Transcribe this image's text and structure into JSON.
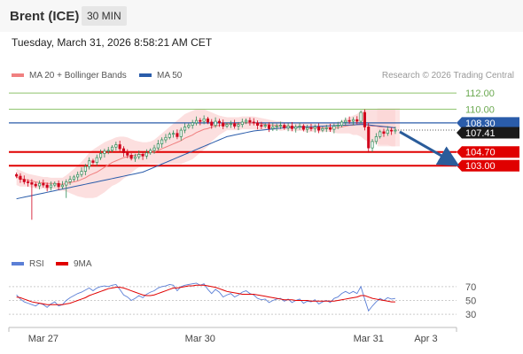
{
  "header": {
    "instrument": "Brent (ICE)",
    "timeframe": "30 MIN",
    "datetime": "Tuesday, March 31, 2026 8:58:21 AM CET"
  },
  "legend": {
    "items": [
      {
        "label": "MA 20 + Bollinger Bands",
        "color": "#f08080"
      },
      {
        "label": "MA 50",
        "color": "#2a5caa"
      }
    ],
    "source": "Research © 2026 Trading Central"
  },
  "rsi_legend": {
    "items": [
      {
        "label": "RSI",
        "color": "#5b7fd6"
      },
      {
        "label": "9MA",
        "color": "#e00000"
      }
    ]
  },
  "colors": {
    "up": "#2e8b57",
    "down": "#d0021b",
    "resistance": "#8dc26b",
    "support": "#e00000",
    "pivot": "#2a5caa",
    "bollinger": "#fbd4d4",
    "ma20": "#f08080",
    "ma50": "#2a5caa",
    "arrow": "#2a5c9a"
  },
  "chart_data": [
    {
      "type": "candlestick",
      "ylim": [
        94.8,
        113.0
      ],
      "x_ticks": [
        "Mar 27",
        "Mar 30",
        "Mar 31",
        "Apr 3"
      ],
      "x_tick_index": [
        7,
        48,
        92,
        107
      ],
      "x_range": [
        -2,
        115
      ],
      "shaded_forecast_from_index": 95,
      "levels": [
        {
          "label": "112.00",
          "value": 112.0,
          "role": "resistance"
        },
        {
          "label": "110.00",
          "value": 110.0,
          "role": "resistance"
        },
        {
          "label": "108.30",
          "value": 108.3,
          "role": "pivot"
        },
        {
          "label": "104.70",
          "value": 104.7,
          "role": "support"
        },
        {
          "label": "103.00",
          "value": 103.0,
          "role": "support"
        }
      ],
      "last_price": {
        "label": "107.41",
        "value": 107.41
      },
      "closes": [
        101.7,
        101.3,
        101.0,
        100.9,
        100.7,
        100.5,
        100.8,
        100.6,
        100.3,
        100.6,
        100.8,
        100.4,
        100.6,
        101.0,
        101.3,
        101.6,
        101.9,
        102.3,
        102.9,
        103.6,
        103.4,
        104.0,
        104.5,
        104.8,
        104.9,
        105.3,
        105.6,
        105.1,
        104.6,
        104.3,
        103.9,
        104.1,
        104.4,
        104.2,
        104.6,
        104.9,
        105.2,
        105.7,
        106.2,
        106.5,
        106.9,
        107.0,
        106.6,
        107.4,
        107.8,
        108.0,
        108.3,
        108.6,
        108.5,
        108.8,
        108.4,
        108.0,
        108.5,
        108.3,
        107.9,
        108.1,
        108.2,
        107.9,
        108.1,
        108.4,
        108.6,
        108.4,
        108.3,
        108.0,
        107.9,
        108.0,
        107.6,
        107.8,
        107.9,
        108.0,
        107.7,
        107.9,
        107.6,
        107.8,
        107.9,
        107.5,
        107.7,
        107.6,
        107.8,
        107.4,
        107.6,
        107.7,
        107.5,
        107.9,
        108.0,
        108.4,
        108.6,
        108.5,
        108.7,
        108.5,
        109.6,
        107.8,
        105.2,
        106.0,
        106.6,
        107.2,
        107.0,
        107.4,
        107.3,
        107.41
      ],
      "ma20": [
        101.6,
        101.4,
        101.3,
        101.2,
        101.1,
        101.0,
        100.9,
        100.9,
        100.8,
        100.8,
        100.8,
        100.7,
        100.7,
        100.8,
        100.9,
        101.0,
        101.1,
        101.3,
        101.5,
        101.8,
        102.0,
        102.2,
        102.5,
        102.8,
        103.1,
        103.4,
        103.6,
        103.8,
        104.0,
        104.1,
        104.2,
        104.3,
        104.4,
        104.4,
        104.5,
        104.6,
        104.7,
        104.9,
        105.1,
        105.3,
        105.5,
        105.7,
        105.9,
        106.1,
        106.4,
        106.6,
        106.8,
        107.1,
        107.3,
        107.5,
        107.6,
        107.8,
        107.9,
        108.0,
        108.1,
        108.2,
        108.2,
        108.2,
        108.2,
        108.3,
        108.3,
        108.3,
        108.3,
        108.2,
        108.2,
        108.1,
        108.1,
        108.0,
        108.0,
        107.9,
        107.9,
        107.9,
        107.8,
        107.8,
        107.8,
        107.8,
        107.7,
        107.7,
        107.7,
        107.7,
        107.7,
        107.7,
        107.7,
        107.7,
        107.7,
        107.8,
        107.9,
        108.0,
        108.0,
        108.1,
        108.2,
        108.1,
        108.0,
        107.9,
        107.9,
        107.8,
        107.8,
        107.8,
        107.7,
        107.7
      ],
      "bb_upper": [
        102.6,
        102.4,
        102.2,
        102.0,
        101.9,
        101.8,
        101.7,
        101.6,
        101.6,
        101.5,
        101.5,
        101.5,
        101.5,
        101.8,
        102.2,
        102.6,
        103.0,
        103.5,
        104.0,
        104.6,
        105.0,
        105.3,
        105.6,
        105.9,
        106.1,
        106.3,
        106.5,
        106.6,
        106.6,
        106.5,
        106.3,
        106.1,
        106.0,
        105.9,
        105.9,
        106.0,
        106.2,
        106.6,
        107.0,
        107.4,
        107.8,
        108.2,
        108.6,
        109.0,
        109.4,
        109.6,
        109.8,
        110.0,
        110.0,
        110.0,
        109.8,
        109.6,
        109.4,
        109.2,
        109.1,
        109.0,
        109.0,
        109.0,
        109.0,
        109.1,
        109.1,
        109.1,
        109.1,
        109.0,
        108.9,
        108.8,
        108.7,
        108.6,
        108.5,
        108.5,
        108.4,
        108.4,
        108.4,
        108.3,
        108.3,
        108.3,
        108.3,
        108.2,
        108.2,
        108.2,
        108.2,
        108.2,
        108.2,
        108.3,
        108.4,
        108.6,
        108.8,
        109.0,
        109.2,
        109.4,
        109.8,
        110.0,
        110.0,
        110.0,
        110.0,
        110.0,
        110.0,
        110.0,
        110.0,
        110.0
      ],
      "bb_lower": [
        100.6,
        100.4,
        100.4,
        100.4,
        100.3,
        100.2,
        100.1,
        100.2,
        100.0,
        100.1,
        100.1,
        99.9,
        99.9,
        99.8,
        99.6,
        99.4,
        99.2,
        99.1,
        99.0,
        99.0,
        99.0,
        99.1,
        99.4,
        99.7,
        100.1,
        100.5,
        100.7,
        101.0,
        101.4,
        101.7,
        102.1,
        102.5,
        102.8,
        102.9,
        103.1,
        103.2,
        103.2,
        103.2,
        103.2,
        103.2,
        103.2,
        103.2,
        103.2,
        103.2,
        103.4,
        103.6,
        103.8,
        104.2,
        104.6,
        105.0,
        105.4,
        106.0,
        106.4,
        106.8,
        107.1,
        107.4,
        107.4,
        107.4,
        107.4,
        107.5,
        107.5,
        107.5,
        107.5,
        107.4,
        107.5,
        107.4,
        107.5,
        107.4,
        107.5,
        107.3,
        107.4,
        107.4,
        107.2,
        107.3,
        107.3,
        107.3,
        107.1,
        107.2,
        107.2,
        107.2,
        107.2,
        107.2,
        107.2,
        107.1,
        107.0,
        107.0,
        107.0,
        107.0,
        106.8,
        106.8,
        106.6,
        106.2,
        106.0,
        105.8,
        105.8,
        105.6,
        105.6,
        105.6,
        105.4,
        105.4
      ],
      "ma50": [
        98.9,
        99.0,
        99.1,
        99.2,
        99.3,
        99.4,
        99.5,
        99.6,
        99.7,
        99.8,
        99.9,
        100.0,
        100.1,
        100.2,
        100.3,
        100.4,
        100.5,
        100.6,
        100.7,
        100.8,
        100.9,
        101.0,
        101.1,
        101.2,
        101.3,
        101.4,
        101.5,
        101.6,
        101.7,
        101.8,
        101.9,
        102.0,
        102.1,
        102.2,
        102.4,
        102.6,
        102.8,
        103.0,
        103.2,
        103.4,
        103.6,
        103.8,
        104.0,
        104.2,
        104.4,
        104.6,
        104.8,
        105.0,
        105.2,
        105.4,
        105.6,
        105.8,
        106.0,
        106.2,
        106.4,
        106.6,
        106.7,
        106.8,
        106.9,
        107.0,
        107.1,
        107.2,
        107.3,
        107.35,
        107.4,
        107.45,
        107.5,
        107.55,
        107.6,
        107.65,
        107.7,
        107.72,
        107.74,
        107.76,
        107.78,
        107.8,
        107.82,
        107.84,
        107.86,
        107.88,
        107.9,
        107.92,
        107.94,
        107.96,
        107.98,
        108.0,
        108.02,
        108.04,
        108.06,
        108.08,
        108.1,
        108.1,
        108.05,
        108.0,
        107.95,
        107.9,
        107.85,
        107.8,
        107.75,
        107.7
      ]
    },
    {
      "type": "line",
      "ylim": [
        20,
        80
      ],
      "y_ticks": [
        70,
        50,
        30
      ],
      "series": [
        {
          "name": "RSI",
          "values": [
            58,
            52,
            48,
            46,
            44,
            42,
            46,
            44,
            40,
            45,
            48,
            42,
            44,
            50,
            54,
            57,
            60,
            62,
            65,
            68,
            64,
            68,
            70,
            71,
            70,
            72,
            73,
            66,
            58,
            55,
            50,
            53,
            57,
            54,
            59,
            62,
            64,
            68,
            70,
            71,
            73,
            72,
            64,
            70,
            72,
            73,
            74,
            75,
            72,
            74,
            66,
            60,
            66,
            62,
            55,
            58,
            60,
            55,
            58,
            62,
            64,
            60,
            58,
            53,
            51,
            52,
            47,
            50,
            52,
            53,
            49,
            52,
            47,
            50,
            52,
            46,
            49,
            48,
            51,
            45,
            48,
            50,
            47,
            53,
            55,
            60,
            63,
            60,
            63,
            60,
            70,
            52,
            35,
            42,
            48,
            53,
            50,
            54,
            52,
            53
          ]
        },
        {
          "name": "9MA",
          "values": [
            55,
            54,
            52,
            50,
            48,
            47,
            46,
            45,
            44,
            44,
            44,
            44,
            44,
            45,
            46,
            48,
            50,
            52,
            54,
            57,
            59,
            61,
            63,
            65,
            67,
            68,
            69,
            69,
            68,
            66,
            64,
            62,
            60,
            58,
            57,
            57,
            58,
            60,
            62,
            64,
            66,
            68,
            68,
            69,
            70,
            71,
            71,
            72,
            72,
            72,
            71,
            70,
            69,
            67,
            65,
            63,
            62,
            61,
            60,
            59,
            59,
            59,
            59,
            58,
            57,
            56,
            55,
            54,
            53,
            52,
            51,
            51,
            51,
            50,
            50,
            50,
            50,
            49,
            49,
            49,
            49,
            49,
            49,
            49,
            50,
            51,
            52,
            53,
            54,
            55,
            57,
            57,
            55,
            53,
            52,
            51,
            50,
            49,
            48,
            48
          ]
        }
      ]
    }
  ]
}
